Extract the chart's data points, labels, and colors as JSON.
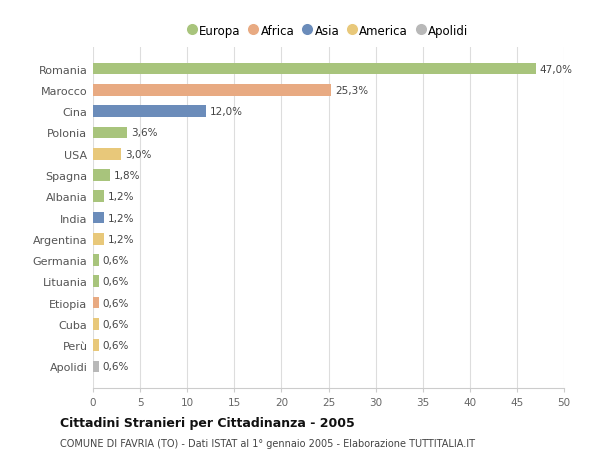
{
  "categories": [
    "Romania",
    "Marocco",
    "Cina",
    "Polonia",
    "USA",
    "Spagna",
    "Albania",
    "India",
    "Argentina",
    "Germania",
    "Lituania",
    "Etiopia",
    "Cuba",
    "Perù",
    "Apolidi"
  ],
  "values": [
    47.0,
    25.3,
    12.0,
    3.6,
    3.0,
    1.8,
    1.2,
    1.2,
    1.2,
    0.6,
    0.6,
    0.6,
    0.6,
    0.6,
    0.6
  ],
  "labels": [
    "47,0%",
    "25,3%",
    "12,0%",
    "3,6%",
    "3,0%",
    "1,8%",
    "1,2%",
    "1,2%",
    "1,2%",
    "0,6%",
    "0,6%",
    "0,6%",
    "0,6%",
    "0,6%",
    "0,6%"
  ],
  "colors": [
    "#a8c47c",
    "#e8aa82",
    "#6b8cba",
    "#a8c47c",
    "#e8c87a",
    "#a8c47c",
    "#a8c47c",
    "#6b8cba",
    "#e8c87a",
    "#a8c47c",
    "#a8c47c",
    "#e8aa82",
    "#e8c87a",
    "#e8c87a",
    "#b8b8b8"
  ],
  "legend_labels": [
    "Europa",
    "Africa",
    "Asia",
    "America",
    "Apolidi"
  ],
  "legend_colors": [
    "#a8c47c",
    "#e8aa82",
    "#6b8cba",
    "#e8c87a",
    "#b8b8b8"
  ],
  "title": "Cittadini Stranieri per Cittadinanza - 2005",
  "subtitle": "COMUNE DI FAVRIA (TO) - Dati ISTAT al 1° gennaio 2005 - Elaborazione TUTTITALIA.IT",
  "xlim": [
    0,
    50
  ],
  "xticks": [
    0,
    5,
    10,
    15,
    20,
    25,
    30,
    35,
    40,
    45,
    50
  ],
  "bg_color": "#ffffff",
  "grid_color": "#dddddd"
}
